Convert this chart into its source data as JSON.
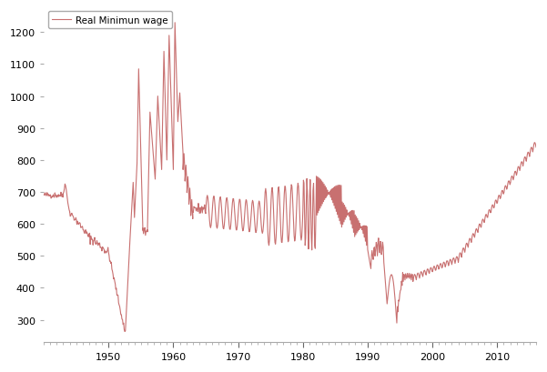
{
  "legend_label": "Real Minimun wage",
  "line_color": "#c87070",
  "background_color": "#ffffff",
  "xlim": [
    1940,
    2016
  ],
  "ylim": [
    230,
    1280
  ],
  "yticks": [
    300,
    400,
    500,
    600,
    700,
    800,
    900,
    1000,
    1100,
    1200
  ],
  "xticks": [
    1950,
    1960,
    1970,
    1980,
    1990,
    2000,
    2010
  ],
  "linewidth": 0.8
}
